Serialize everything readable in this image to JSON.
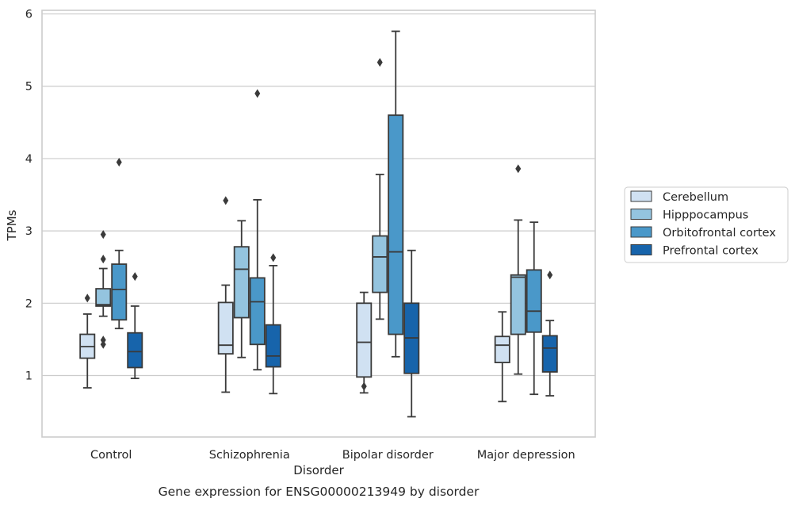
{
  "chart_data": {
    "type": "box",
    "title": "",
    "caption": "Gene expression for ENSG00000213949 by disorder",
    "xlabel": "Disorder",
    "ylabel": "TPMs",
    "ylim": [
      0.15,
      6.05
    ],
    "yticks": [
      1,
      2,
      3,
      4,
      5,
      6
    ],
    "grid": "horizontal",
    "legend_placement": "right",
    "categories": [
      "Control",
      "Schizophrenia",
      "Bipolar disorder",
      "Major depression"
    ],
    "series": [
      {
        "name": "Cerebellum",
        "color": "#d0e1f2",
        "boxes": [
          {
            "whislo": 0.83,
            "q1": 1.24,
            "med": 1.4,
            "q3": 1.57,
            "whishi": 1.85,
            "fliers": [
              2.07
            ]
          },
          {
            "whislo": 0.77,
            "q1": 1.3,
            "med": 1.42,
            "q3": 2.01,
            "whishi": 2.25,
            "fliers": [
              3.42
            ]
          },
          {
            "whislo": 0.76,
            "q1": 0.98,
            "med": 1.46,
            "q3": 2.0,
            "whishi": 2.15,
            "fliers": [
              0.85
            ]
          },
          {
            "whislo": 0.64,
            "q1": 1.18,
            "med": 1.42,
            "q3": 1.54,
            "whishi": 1.88,
            "fliers": []
          }
        ]
      },
      {
        "name": "Hipppocampus",
        "color": "#94c4df",
        "boxes": [
          {
            "whislo": 1.82,
            "q1": 1.96,
            "med": 1.98,
            "q3": 2.2,
            "whishi": 2.48,
            "fliers": [
              1.43,
              1.49,
              2.61,
              2.95
            ]
          },
          {
            "whislo": 1.25,
            "q1": 1.8,
            "med": 2.47,
            "q3": 2.78,
            "whishi": 3.14,
            "fliers": []
          },
          {
            "whislo": 1.78,
            "q1": 2.15,
            "med": 2.64,
            "q3": 2.93,
            "whishi": 3.78,
            "fliers": [
              5.33
            ]
          },
          {
            "whislo": 1.02,
            "q1": 1.57,
            "med": 2.36,
            "q3": 2.39,
            "whishi": 3.15,
            "fliers": [
              3.86
            ]
          }
        ]
      },
      {
        "name": "Orbitofrontal cortex",
        "color": "#4a98c9",
        "boxes": [
          {
            "whislo": 1.65,
            "q1": 1.77,
            "med": 2.19,
            "q3": 2.54,
            "whishi": 2.73,
            "fliers": [
              3.95
            ]
          },
          {
            "whislo": 1.08,
            "q1": 1.43,
            "med": 2.02,
            "q3": 2.35,
            "whishi": 3.43,
            "fliers": [
              4.9
            ]
          },
          {
            "whislo": 1.26,
            "q1": 1.57,
            "med": 2.71,
            "q3": 4.6,
            "whishi": 5.76,
            "fliers": []
          },
          {
            "whislo": 0.74,
            "q1": 1.6,
            "med": 1.89,
            "q3": 2.46,
            "whishi": 3.12,
            "fliers": []
          }
        ]
      },
      {
        "name": "Prefrontal cortex",
        "color": "#1764ab",
        "boxes": [
          {
            "whislo": 0.96,
            "q1": 1.11,
            "med": 1.33,
            "q3": 1.59,
            "whishi": 1.96,
            "fliers": [
              2.37
            ]
          },
          {
            "whislo": 0.75,
            "q1": 1.12,
            "med": 1.27,
            "q3": 1.7,
            "whishi": 2.52,
            "fliers": [
              2.63
            ]
          },
          {
            "whislo": 0.43,
            "q1": 1.03,
            "med": 1.52,
            "q3": 2.0,
            "whishi": 2.73,
            "fliers": []
          },
          {
            "whislo": 0.72,
            "q1": 1.05,
            "med": 1.38,
            "q3": 1.55,
            "whishi": 1.76,
            "fliers": [
              2.39
            ]
          }
        ]
      }
    ]
  }
}
